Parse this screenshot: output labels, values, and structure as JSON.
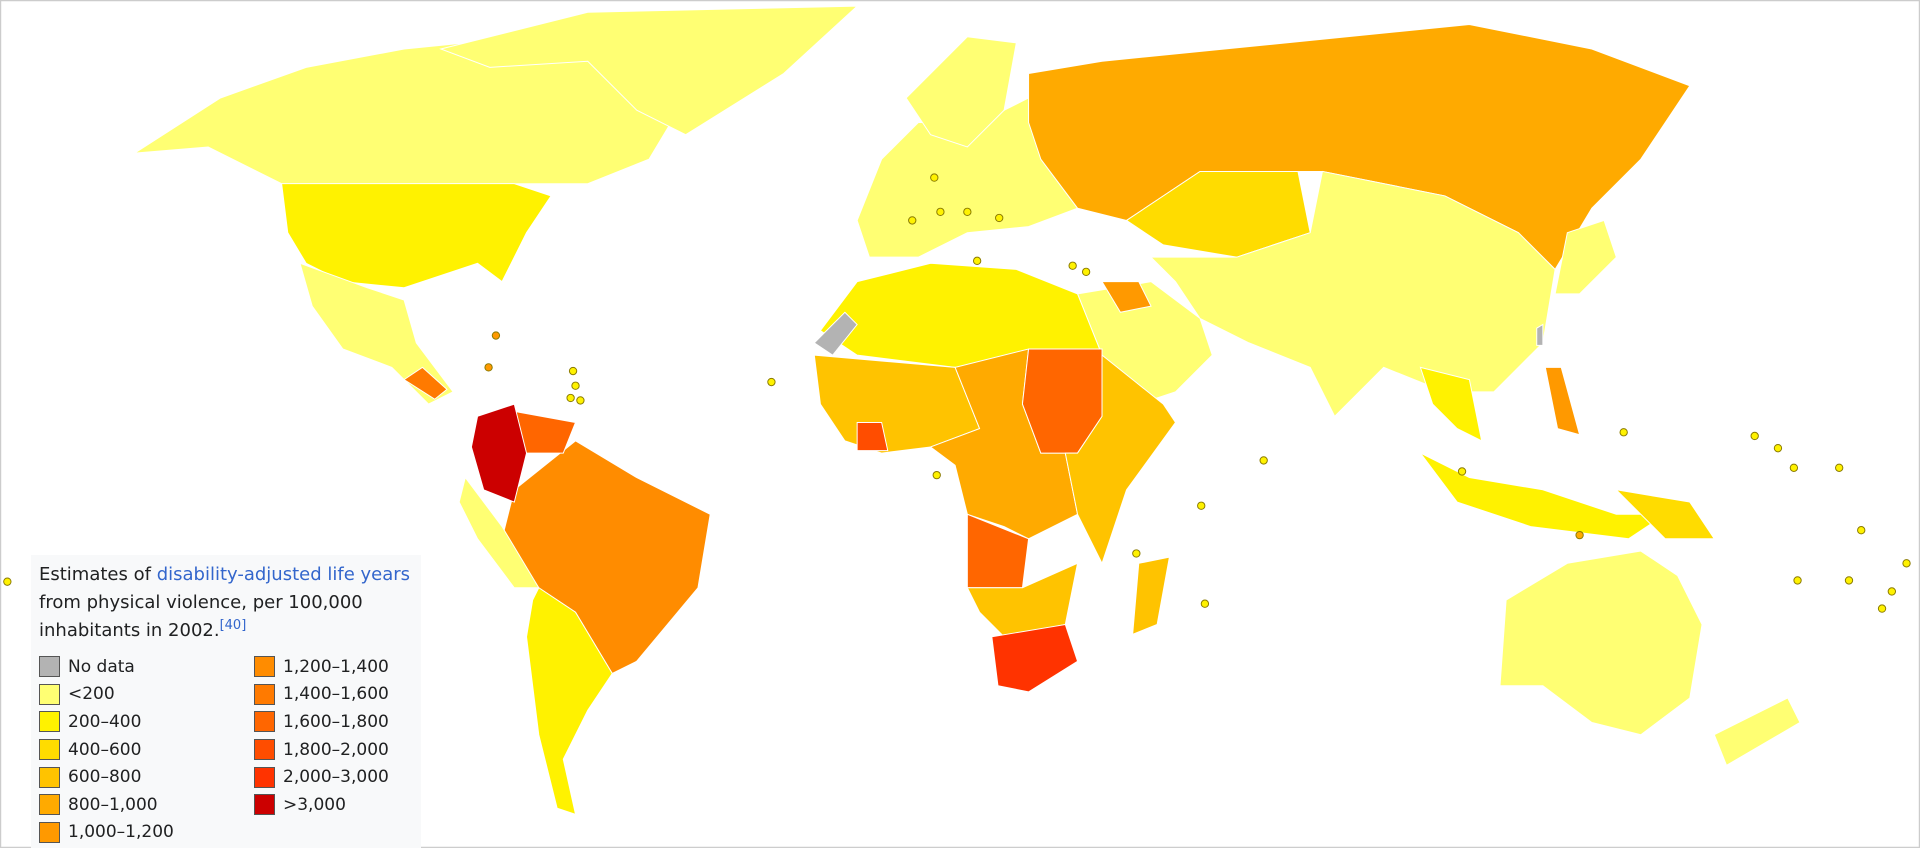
{
  "caption": {
    "prefix": "Estimates of ",
    "link": "disability-adjusted life years",
    "suffix": " from physical violence, per 100,000 inhabitants in 2002.",
    "ref": "[40]"
  },
  "legend": [
    {
      "label": "No data",
      "color": "#b3b3b3"
    },
    {
      "label": "<200",
      "color": "#ffff73"
    },
    {
      "label": "200–400",
      "color": "#fff200"
    },
    {
      "label": "400–600",
      "color": "#ffdc00"
    },
    {
      "label": "600–800",
      "color": "#ffc300"
    },
    {
      "label": "800–1,000",
      "color": "#ffaa00"
    },
    {
      "label": "1,000–1,200",
      "color": "#ff9900"
    },
    {
      "label": "1,200–1,400",
      "color": "#ff8c00"
    },
    {
      "label": "1,400–1,600",
      "color": "#ff7a00"
    },
    {
      "label": "1,600–1,800",
      "color": "#ff6600"
    },
    {
      "label": "1,800–2,000",
      "color": "#ff4d00"
    },
    {
      "label": "2,000–3,000",
      "color": "#ff3300"
    },
    {
      "label": ">3,000",
      "color": "#cc0000"
    }
  ]
}
